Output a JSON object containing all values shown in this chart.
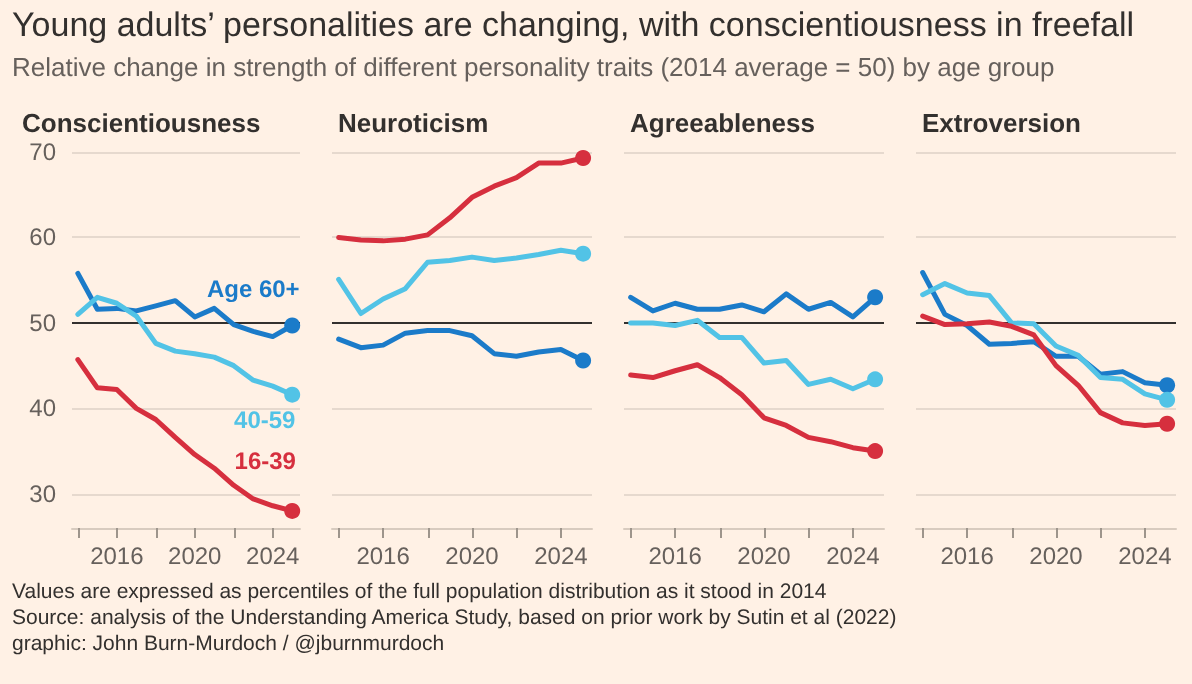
{
  "chart_data": [
    {
      "type": "other",
      "title": "Young adults’ personalities are changing, with conscientiousness in freefall",
      "subtitle": "Relative change in strength of different personality traits (2014 average = 50) by age group",
      "annotations": [
        "Values are expressed as percentiles of the full population distribution as it stood in 2014",
        "Source: analysis of the Understanding America Study, based on prior work by Sutin et al (2022)",
        "graphic: John Burn-Murdoch / @jburnmurdoch"
      ]
    },
    {
      "type": "line",
      "title": "Conscientiousness",
      "x": [
        2014,
        2015,
        2016,
        2017,
        2018,
        2019,
        2020,
        2021,
        2022,
        2023,
        2024,
        2025
      ],
      "xlim": [
        2013.7,
        2025.4
      ],
      "xticks": [
        {
          "value": 2014,
          "label": null
        },
        2016,
        {
          "value": 2018,
          "label": null
        },
        2020,
        {
          "value": 2022,
          "label": null
        },
        2024
      ],
      "ylim": [
        26,
        70
      ],
      "yticks": [
        30,
        40,
        50,
        60,
        70
      ],
      "grid": "y",
      "ref_lines": [
        {
          "axis": "y",
          "value": 50,
          "color": "#33302e"
        }
      ],
      "series": [
        {
          "name": "Age 60+",
          "color": "#1b7bc9",
          "values": [
            55.8,
            51.6,
            51.7,
            51.4,
            52,
            52.6,
            50.7,
            51.7,
            49.8,
            49,
            48.4,
            49.7
          ]
        },
        {
          "name": "40-59",
          "color": "#52c3e6",
          "values": [
            51,
            53,
            52.3,
            50.8,
            47.6,
            46.7,
            46.4,
            46,
            45,
            43.3,
            42.6,
            41.6
          ]
        },
        {
          "name": "16-39",
          "color": "#d62f3e",
          "values": [
            45.7,
            42.4,
            42.2,
            40,
            38.7,
            36.6,
            34.6,
            33,
            31,
            29.4,
            28.6,
            28
          ]
        }
      ]
    },
    {
      "type": "line",
      "title": "Neuroticism",
      "tick_labels": "x",
      "x": [
        2014,
        2015,
        2016,
        2017,
        2018,
        2019,
        2020,
        2021,
        2022,
        2023,
        2024,
        2025
      ],
      "xlim": [
        2013.7,
        2025.4
      ],
      "xticks": [
        {
          "value": 2014,
          "label": null
        },
        2016,
        {
          "value": 2018,
          "label": null
        },
        2020,
        {
          "value": 2022,
          "label": null
        },
        2024
      ],
      "ylim": [
        26,
        70
      ],
      "yticks": [
        30,
        40,
        50,
        60,
        70
      ],
      "grid": "y",
      "ref_lines": [
        {
          "axis": "y",
          "value": 50,
          "color": "#33302e"
        }
      ],
      "series": [
        {
          "color": "#1b7bc9",
          "values": [
            48.1,
            47.1,
            47.4,
            48.8,
            49.1,
            49.1,
            48.5,
            46.4,
            46.1,
            46.6,
            46.9,
            45.6
          ]
        },
        {
          "color": "#52c3e6",
          "values": [
            55.1,
            51.1,
            52.8,
            54,
            57.1,
            57.3,
            57.7,
            57.3,
            57.6,
            58,
            58.5,
            58.1
          ]
        },
        {
          "color": "#d62f3e",
          "values": [
            60,
            59.7,
            59.6,
            59.8,
            60.3,
            62.3,
            64.7,
            66,
            67,
            68.7,
            68.7,
            69.3
          ]
        }
      ]
    },
    {
      "type": "line",
      "title": "Agreeableness",
      "tick_labels": "x",
      "x": [
        2014,
        2015,
        2016,
        2017,
        2018,
        2019,
        2020,
        2021,
        2022,
        2023,
        2024,
        2025
      ],
      "xlim": [
        2013.7,
        2025.4
      ],
      "xticks": [
        {
          "value": 2014,
          "label": null
        },
        2016,
        {
          "value": 2018,
          "label": null
        },
        2020,
        {
          "value": 2022,
          "label": null
        },
        2024
      ],
      "ylim": [
        26,
        70
      ],
      "yticks": [
        30,
        40,
        50,
        60,
        70
      ],
      "grid": "y",
      "ref_lines": [
        {
          "axis": "y",
          "value": 50,
          "color": "#33302e"
        }
      ],
      "series": [
        {
          "color": "#1b7bc9",
          "values": [
            53,
            51.4,
            52.3,
            51.6,
            51.6,
            52.1,
            51.3,
            53.4,
            51.6,
            52.4,
            50.7,
            53
          ]
        },
        {
          "color": "#52c3e6",
          "values": [
            50,
            50,
            49.7,
            50.3,
            48.3,
            48.3,
            45.3,
            45.6,
            42.8,
            43.4,
            42.3,
            43.4
          ]
        },
        {
          "color": "#d62f3e",
          "values": [
            43.9,
            43.6,
            44.4,
            45.1,
            43.6,
            41.6,
            38.9,
            38,
            36.6,
            36.1,
            35.4,
            35
          ]
        }
      ]
    },
    {
      "type": "line",
      "title": "Extroversion",
      "tick_labels": "x",
      "x": [
        2014,
        2015,
        2016,
        2017,
        2018,
        2019,
        2020,
        2021,
        2022,
        2023,
        2024,
        2025
      ],
      "xlim": [
        2013.7,
        2025.4
      ],
      "xticks": [
        {
          "value": 2014,
          "label": null
        },
        2016,
        {
          "value": 2018,
          "label": null
        },
        2020,
        {
          "value": 2022,
          "label": null
        },
        2024
      ],
      "ylim": [
        26,
        70
      ],
      "yticks": [
        30,
        40,
        50,
        60,
        70
      ],
      "grid": "y",
      "ref_lines": [
        {
          "axis": "y",
          "value": 50,
          "color": "#33302e"
        }
      ],
      "series": [
        {
          "color": "#1b7bc9",
          "values": [
            55.9,
            51,
            49.7,
            47.5,
            47.6,
            47.8,
            46.1,
            46.1,
            44,
            44.3,
            43,
            42.7
          ]
        },
        {
          "color": "#52c3e6",
          "values": [
            53.3,
            54.6,
            53.5,
            53.2,
            50,
            49.9,
            47.3,
            46.2,
            43.6,
            43.4,
            41.7,
            41
          ]
        },
        {
          "color": "#d62f3e",
          "values": [
            50.8,
            49.8,
            49.9,
            50.1,
            49.6,
            48.6,
            45,
            42.7,
            39.5,
            38.3,
            38,
            38.2
          ]
        }
      ]
    }
  ]
}
